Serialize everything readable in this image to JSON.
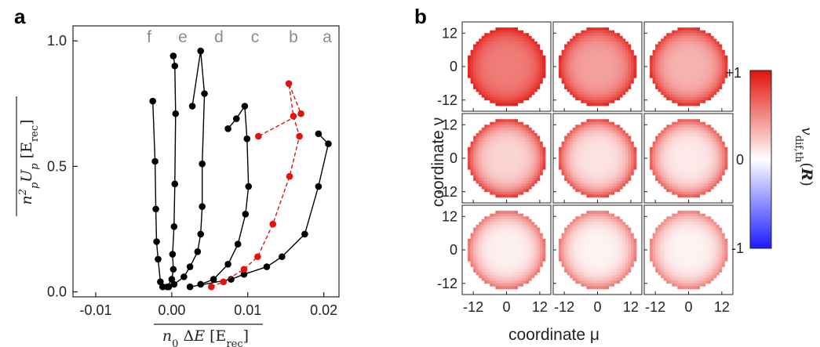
{
  "panel_a": {
    "label": "a",
    "y_unit": "[E",
    "y_unit_sub": "rec",
    "y_unit_close": "]",
    "x_unit": "[E",
    "x_unit_sub": "rec",
    "x_unit_close": "]",
    "x_ticks": [
      "-0.01",
      "0.00",
      "0.01",
      "0.02"
    ],
    "y_ticks": [
      "0.0",
      "0.5",
      "1.0"
    ]
  },
  "panel_b": {
    "label": "b",
    "xlabel": "coordinate μ",
    "ylabel": "coordinate ν",
    "x_ticks": [
      "-12",
      "0",
      "12"
    ],
    "y_ticks": [
      "12",
      "0",
      "-12"
    ],
    "colorbar_ticks": [
      "+1",
      "0",
      "-1"
    ]
  },
  "chart_data": [
    {
      "type": "line",
      "panel": "a",
      "xlim": [
        -0.013,
        0.022
      ],
      "ylim": [
        -0.02,
        1.06
      ],
      "series": [
        {
          "name": "a",
          "color": "#000000",
          "style": "solid",
          "x": [
            0.0024,
            0.0078,
            0.0095,
            0.0125,
            0.0145,
            0.0175,
            0.0193,
            0.0206,
            0.0193
          ],
          "y": [
            0.02,
            0.05,
            0.07,
            0.1,
            0.14,
            0.23,
            0.42,
            0.59,
            0.63
          ]
        },
        {
          "name": "b",
          "color": "#e3120b",
          "style": "dashed",
          "x": [
            0.0052,
            0.0068,
            0.0095,
            0.0113,
            0.0133,
            0.0155,
            0.0168,
            0.016,
            0.0154,
            0.017,
            0.0114
          ],
          "y": [
            0.02,
            0.04,
            0.09,
            0.14,
            0.27,
            0.46,
            0.62,
            0.7,
            0.83,
            0.71,
            0.62
          ]
        },
        {
          "name": "c",
          "color": "#000000",
          "style": "solid",
          "x": [
            0.0038,
            0.0055,
            0.0074,
            0.0087,
            0.0097,
            0.0101,
            0.0099,
            0.0096,
            0.0085,
            0.0074
          ],
          "y": [
            0.03,
            0.05,
            0.11,
            0.19,
            0.31,
            0.42,
            0.61,
            0.74,
            0.69,
            0.65
          ]
        },
        {
          "name": "d",
          "color": "#000000",
          "style": "solid",
          "x": [
            -0.0004,
            0.0003,
            0.0016,
            0.0024,
            0.0034,
            0.0038,
            0.004,
            0.004,
            0.0043,
            0.0038,
            0.0027
          ],
          "y": [
            0.02,
            0.03,
            0.06,
            0.1,
            0.16,
            0.23,
            0.34,
            0.51,
            0.79,
            0.96,
            0.74
          ]
        },
        {
          "name": "e",
          "color": "#000000",
          "style": "solid",
          "x": [
            -0.0006,
            0.0,
            0.0002,
            0.0001,
            0.0003,
            0.0004,
            0.0005,
            0.0004,
            0.0002
          ],
          "y": [
            0.02,
            0.05,
            0.09,
            0.15,
            0.26,
            0.43,
            0.71,
            0.9,
            0.94
          ]
        },
        {
          "name": "f",
          "color": "#000000",
          "style": "solid",
          "x": [
            -0.0012,
            -0.0015,
            -0.0018,
            -0.002,
            -0.0021,
            -0.0022,
            -0.0025
          ],
          "y": [
            0.02,
            0.04,
            0.13,
            0.2,
            0.33,
            0.52,
            0.76
          ]
        }
      ]
    },
    {
      "type": "heatmap",
      "panel": "b",
      "grid": [
        3,
        3
      ],
      "xlim": [
        -16,
        16
      ],
      "ylim": [
        -16,
        16
      ],
      "disk_radius": 14,
      "colorbar": {
        "min": -1,
        "max": 1,
        "colors": [
          "#1a1aff",
          "#ffffff",
          "#e3120b"
        ]
      },
      "maps": [
        {
          "center": 0.55,
          "edge": 0.95
        },
        {
          "center": 0.4,
          "edge": 0.92
        },
        {
          "center": 0.32,
          "edge": 0.9
        },
        {
          "center": 0.18,
          "edge": 0.85
        },
        {
          "center": 0.12,
          "edge": 0.78
        },
        {
          "center": 0.09,
          "edge": 0.72
        },
        {
          "center": 0.06,
          "edge": 0.62
        },
        {
          "center": 0.05,
          "edge": 0.58
        },
        {
          "center": 0.05,
          "edge": 0.55
        }
      ]
    }
  ]
}
